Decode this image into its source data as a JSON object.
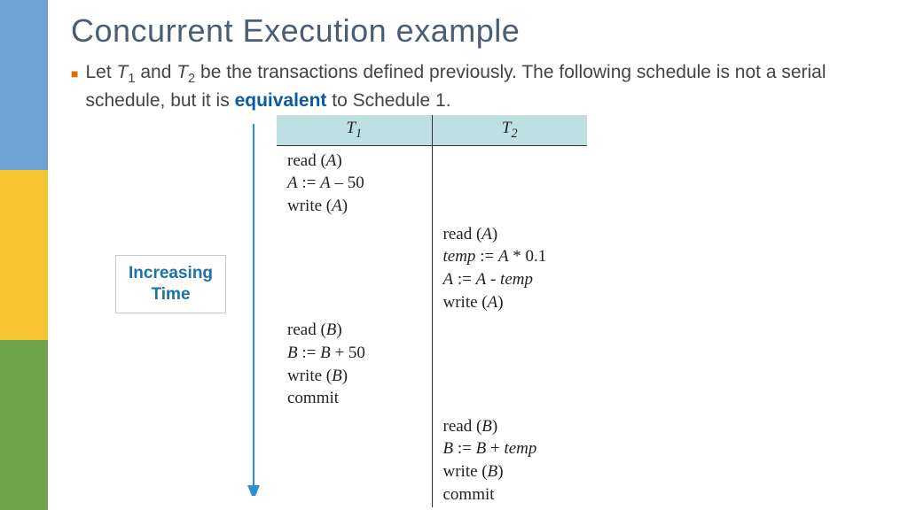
{
  "colors": {
    "sidebar_top": "#6ea1d4",
    "sidebar_mid": "#f7c431",
    "sidebar_bot": "#6fa24a",
    "title": "#4a5d74",
    "bullet_mark": "#e36c0a",
    "keyword": "#0b5aa5",
    "table_header_bg": "#bfe0e3",
    "time_box_text": "#1f6fa8",
    "arrow": "#2f8fcf"
  },
  "title": "Concurrent Execution example",
  "bullet": {
    "prefix": "Let ",
    "t1": "T",
    "s1": "1",
    "mid1": " and ",
    "t2": "T",
    "s2": "2",
    "mid2": " be the transactions defined previously.  The following schedule is not a serial schedule, but it is ",
    "keyword": "equivalent",
    "suffix": " to Schedule 1."
  },
  "time_label_line1": "Increasing",
  "time_label_line2": "Time",
  "arrow_length": 410,
  "table": {
    "headers": {
      "c1": "T",
      "c1sub": "1",
      "c2": "T",
      "c2sub": "2"
    },
    "rows": [
      {
        "t1": [
          "read (<i>A</i>)",
          "<i>A</i> := <i>A</i> – 50",
          "write (<i>A</i>)"
        ],
        "t2": []
      },
      {
        "t1": [],
        "t2": [
          "read (<i>A</i>)",
          "<i>temp</i> := <i>A</i> * 0.1",
          "<i>A</i> := <i>A</i> - <i>temp</i>",
          "write (<i>A</i>)"
        ]
      },
      {
        "t1": [
          "read (<i>B</i>)",
          "<i>B</i> := <i>B</i> + 50",
          "write (<i>B</i>)",
          "commit"
        ],
        "t2": []
      },
      {
        "t1": [],
        "t2": [
          "read (<i>B</i>)",
          "<i>B</i> := <i>B</i> + <i>temp</i>",
          "write (<i>B</i>)",
          "commit"
        ]
      }
    ]
  }
}
